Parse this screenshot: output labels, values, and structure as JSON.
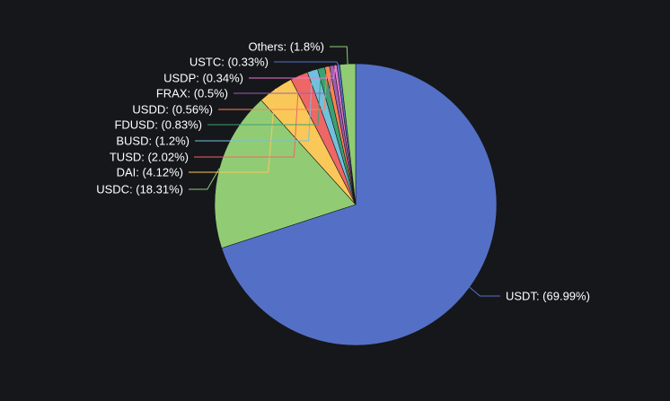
{
  "chart_data": {
    "type": "pie",
    "title": "",
    "slices": [
      {
        "label": "USDT",
        "value": 69.99,
        "display": "USDT: (69.99%)",
        "color": "#5470c6"
      },
      {
        "label": "USDC",
        "value": 18.31,
        "display": "USDC: (18.31%)",
        "color": "#91cc75"
      },
      {
        "label": "DAI",
        "value": 4.12,
        "display": "DAI: (4.12%)",
        "color": "#fac858"
      },
      {
        "label": "TUSD",
        "value": 2.02,
        "display": "TUSD: (2.02%)",
        "color": "#ee6666"
      },
      {
        "label": "BUSD",
        "value": 1.2,
        "display": "BUSD: (1.2%)",
        "color": "#73c0de"
      },
      {
        "label": "FDUSD",
        "value": 0.83,
        "display": "FDUSD: (0.83%)",
        "color": "#3ba272"
      },
      {
        "label": "USDD",
        "value": 0.56,
        "display": "USDD: (0.56%)",
        "color": "#fc8452"
      },
      {
        "label": "FRAX",
        "value": 0.5,
        "display": "FRAX: (0.5%)",
        "color": "#9a60b4"
      },
      {
        "label": "USDP",
        "value": 0.34,
        "display": "USDP: (0.34%)",
        "color": "#ea7ccc"
      },
      {
        "label": "USTC",
        "value": 0.33,
        "display": "USTC: (0.33%)",
        "color": "#5470c6"
      },
      {
        "label": "Others",
        "value": 1.8,
        "display": "Others: (1.8%)",
        "color": "#91cc75"
      }
    ],
    "legend": "none",
    "start_angle": "top, clockwise"
  }
}
